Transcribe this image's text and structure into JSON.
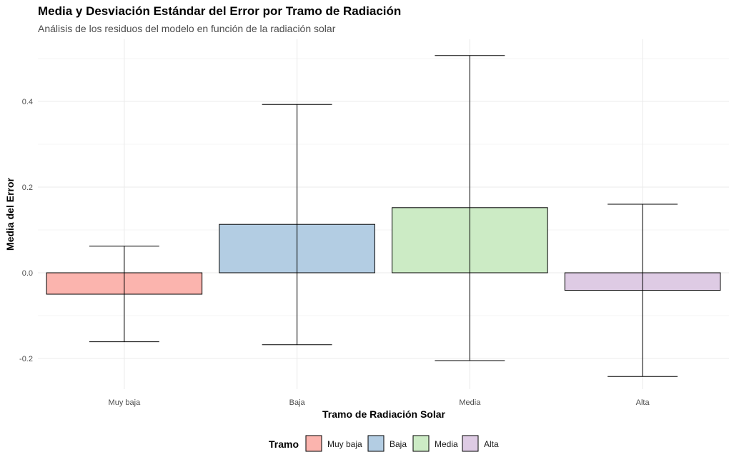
{
  "chart_data": {
    "type": "bar",
    "title": "Media y Desviación Estándar del Error por Tramo de Radiación",
    "subtitle": "Análisis de los residuos del modelo en función de la radiación solar",
    "xlabel": "Tramo de Radiación Solar",
    "ylabel": "Media del Error",
    "categories": [
      "Muy baja",
      "Baja",
      "Media",
      "Alta"
    ],
    "values": [
      -0.05,
      0.113,
      0.152,
      -0.041
    ],
    "error_bars": [
      {
        "lower": -0.161,
        "upper": 0.062
      },
      {
        "lower": -0.168,
        "upper": 0.393
      },
      {
        "lower": -0.205,
        "upper": 0.507
      },
      {
        "lower": -0.242,
        "upper": 0.16
      }
    ],
    "colors": [
      "#FBB4AE",
      "#B3CDE3",
      "#CCEBC5",
      "#DECBE4"
    ],
    "ylim": [
      -0.27,
      0.54
    ],
    "yticks": [
      -0.2,
      0.0,
      0.2,
      0.4
    ],
    "ytick_labels": [
      "-0.2",
      "0.0",
      "0.2",
      "0.4"
    ],
    "grid": true,
    "legend": {
      "title": "Tramo",
      "position": "bottom",
      "entries": [
        "Muy baja",
        "Baja",
        "Media",
        "Alta"
      ]
    }
  }
}
